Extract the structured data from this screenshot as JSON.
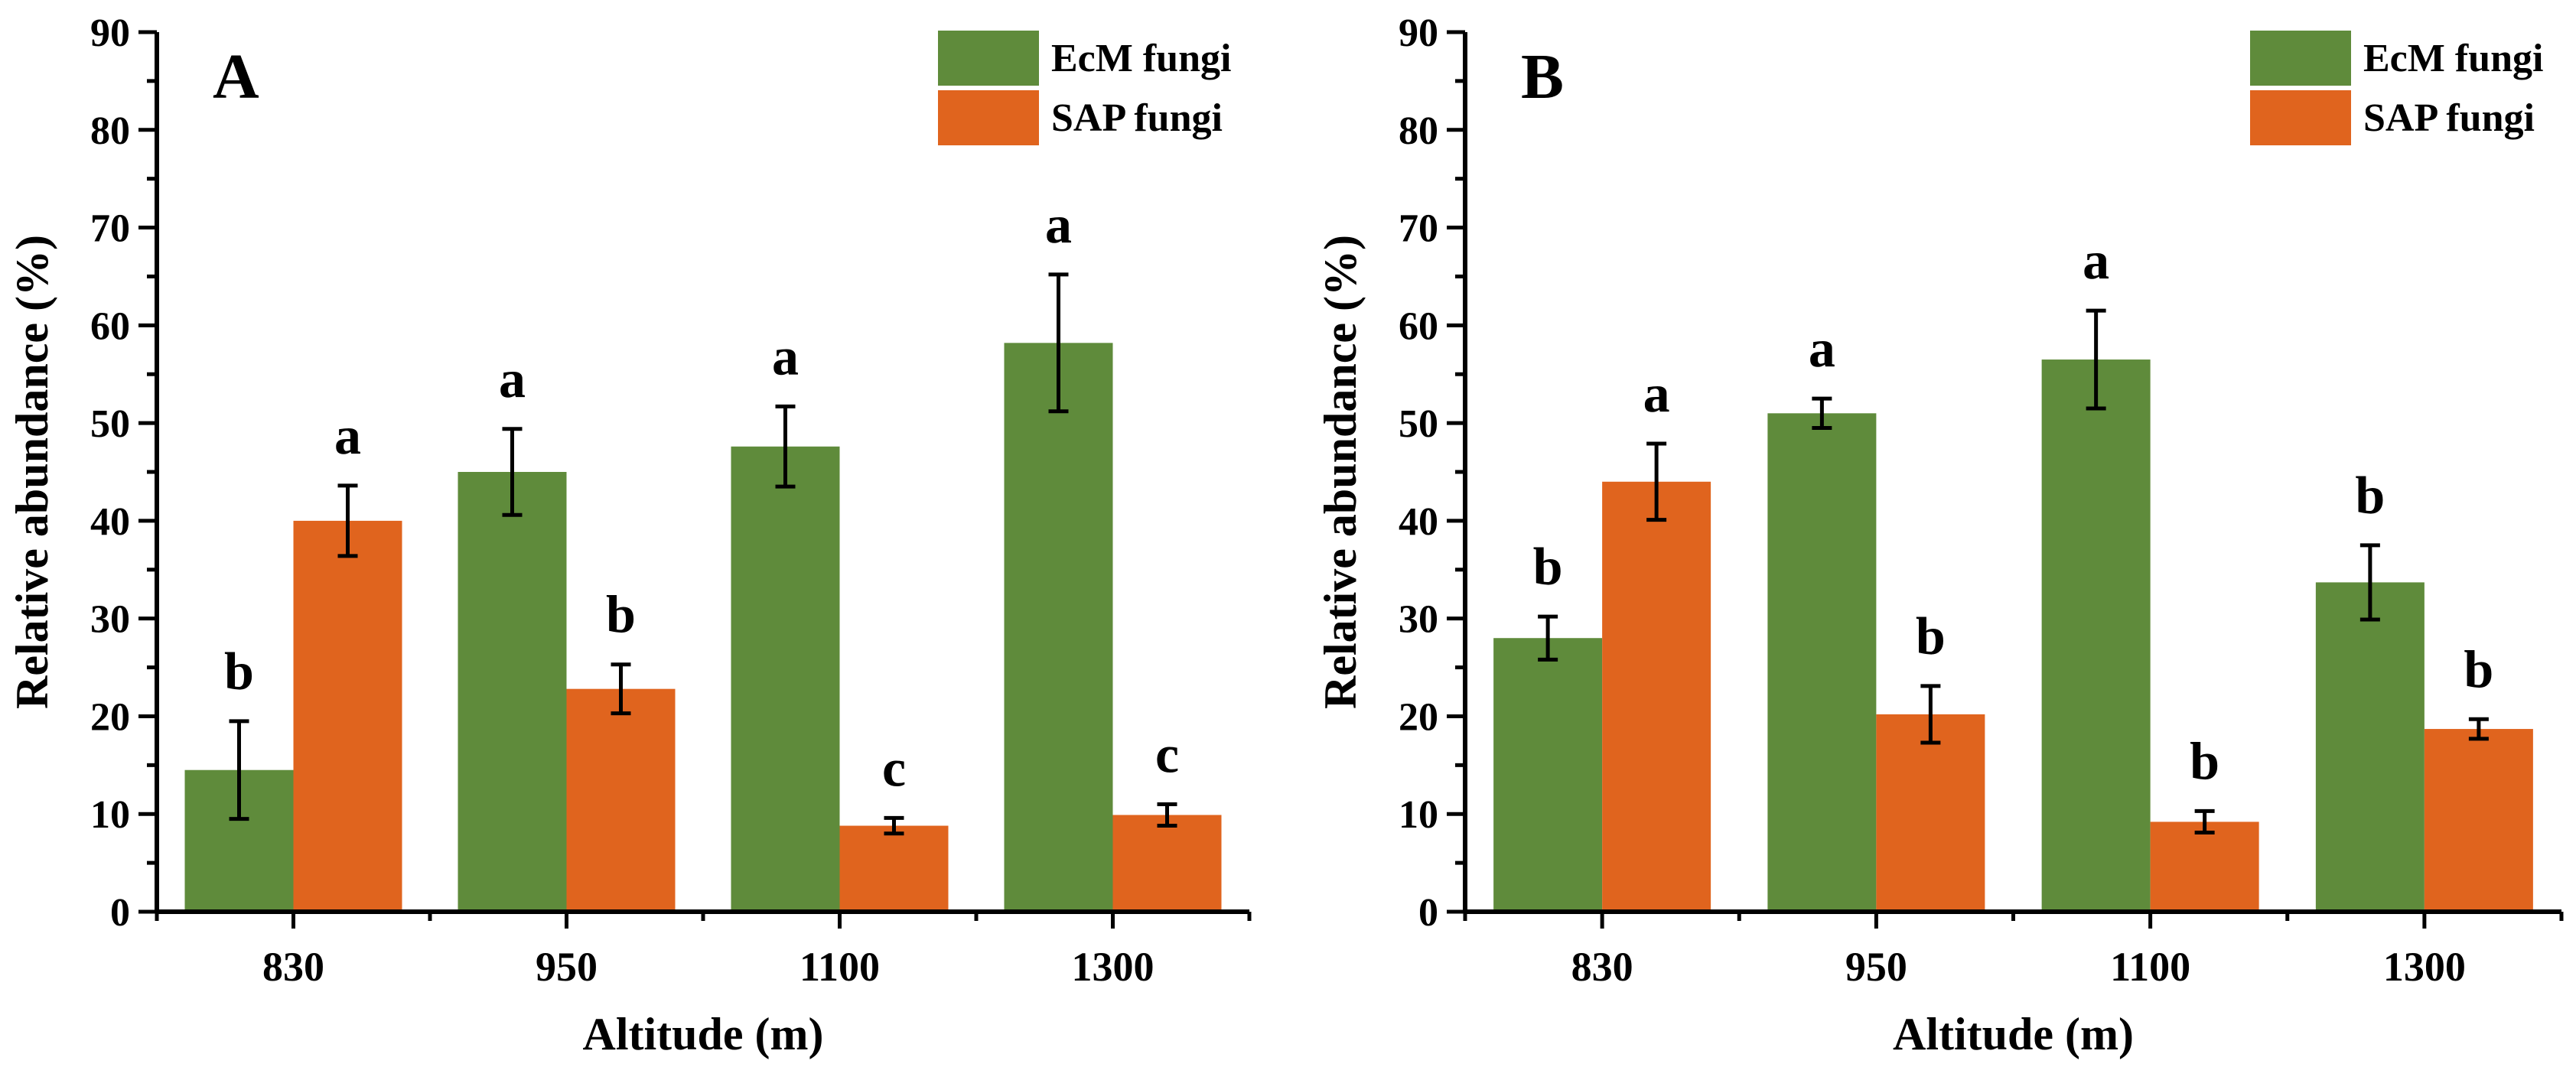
{
  "chart_data": [
    {
      "type": "bar",
      "panel_label": "A",
      "title": "",
      "xlabel": "Altitude (m)",
      "ylabel": "Relative abundance (%)",
      "categories": [
        "830",
        "950",
        "1100",
        "1300"
      ],
      "ylim": [
        0,
        90
      ],
      "yticks": [
        0,
        10,
        20,
        30,
        40,
        50,
        60,
        70,
        80,
        90
      ],
      "legend_position": "top-right",
      "grid": false,
      "series": [
        {
          "name": "EcM fungi",
          "color": "#5f8b3b",
          "values": [
            14.5,
            45.0,
            47.6,
            58.2
          ],
          "errors": [
            5.0,
            4.4,
            4.1,
            7.0
          ],
          "letters": [
            "b",
            "a",
            "a",
            "a"
          ]
        },
        {
          "name": "SAP fungi",
          "color": "#e0641e",
          "values": [
            40.0,
            22.8,
            8.8,
            9.9
          ],
          "errors": [
            3.6,
            2.5,
            0.8,
            1.1
          ],
          "letters": [
            "a",
            "b",
            "c",
            "c"
          ]
        }
      ]
    },
    {
      "type": "bar",
      "panel_label": "B",
      "title": "",
      "xlabel": "Altitude (m)",
      "ylabel": "Relative abundance (%)",
      "categories": [
        "830",
        "950",
        "1100",
        "1300"
      ],
      "ylim": [
        0,
        90
      ],
      "yticks": [
        0,
        10,
        20,
        30,
        40,
        50,
        60,
        70,
        80,
        90
      ],
      "legend_position": "top-right",
      "grid": false,
      "series": [
        {
          "name": "EcM fungi",
          "color": "#5f8b3b",
          "values": [
            28.0,
            51.0,
            56.5,
            33.7
          ],
          "errors": [
            2.2,
            1.5,
            5.0,
            3.8
          ],
          "letters": [
            "b",
            "a",
            "a",
            "b"
          ]
        },
        {
          "name": "SAP fungi",
          "color": "#e0641e",
          "values": [
            44.0,
            20.2,
            9.2,
            18.7
          ],
          "errors": [
            3.9,
            2.9,
            1.1,
            1.0
          ],
          "letters": [
            "a",
            "b",
            "b",
            "b"
          ]
        }
      ]
    }
  ]
}
